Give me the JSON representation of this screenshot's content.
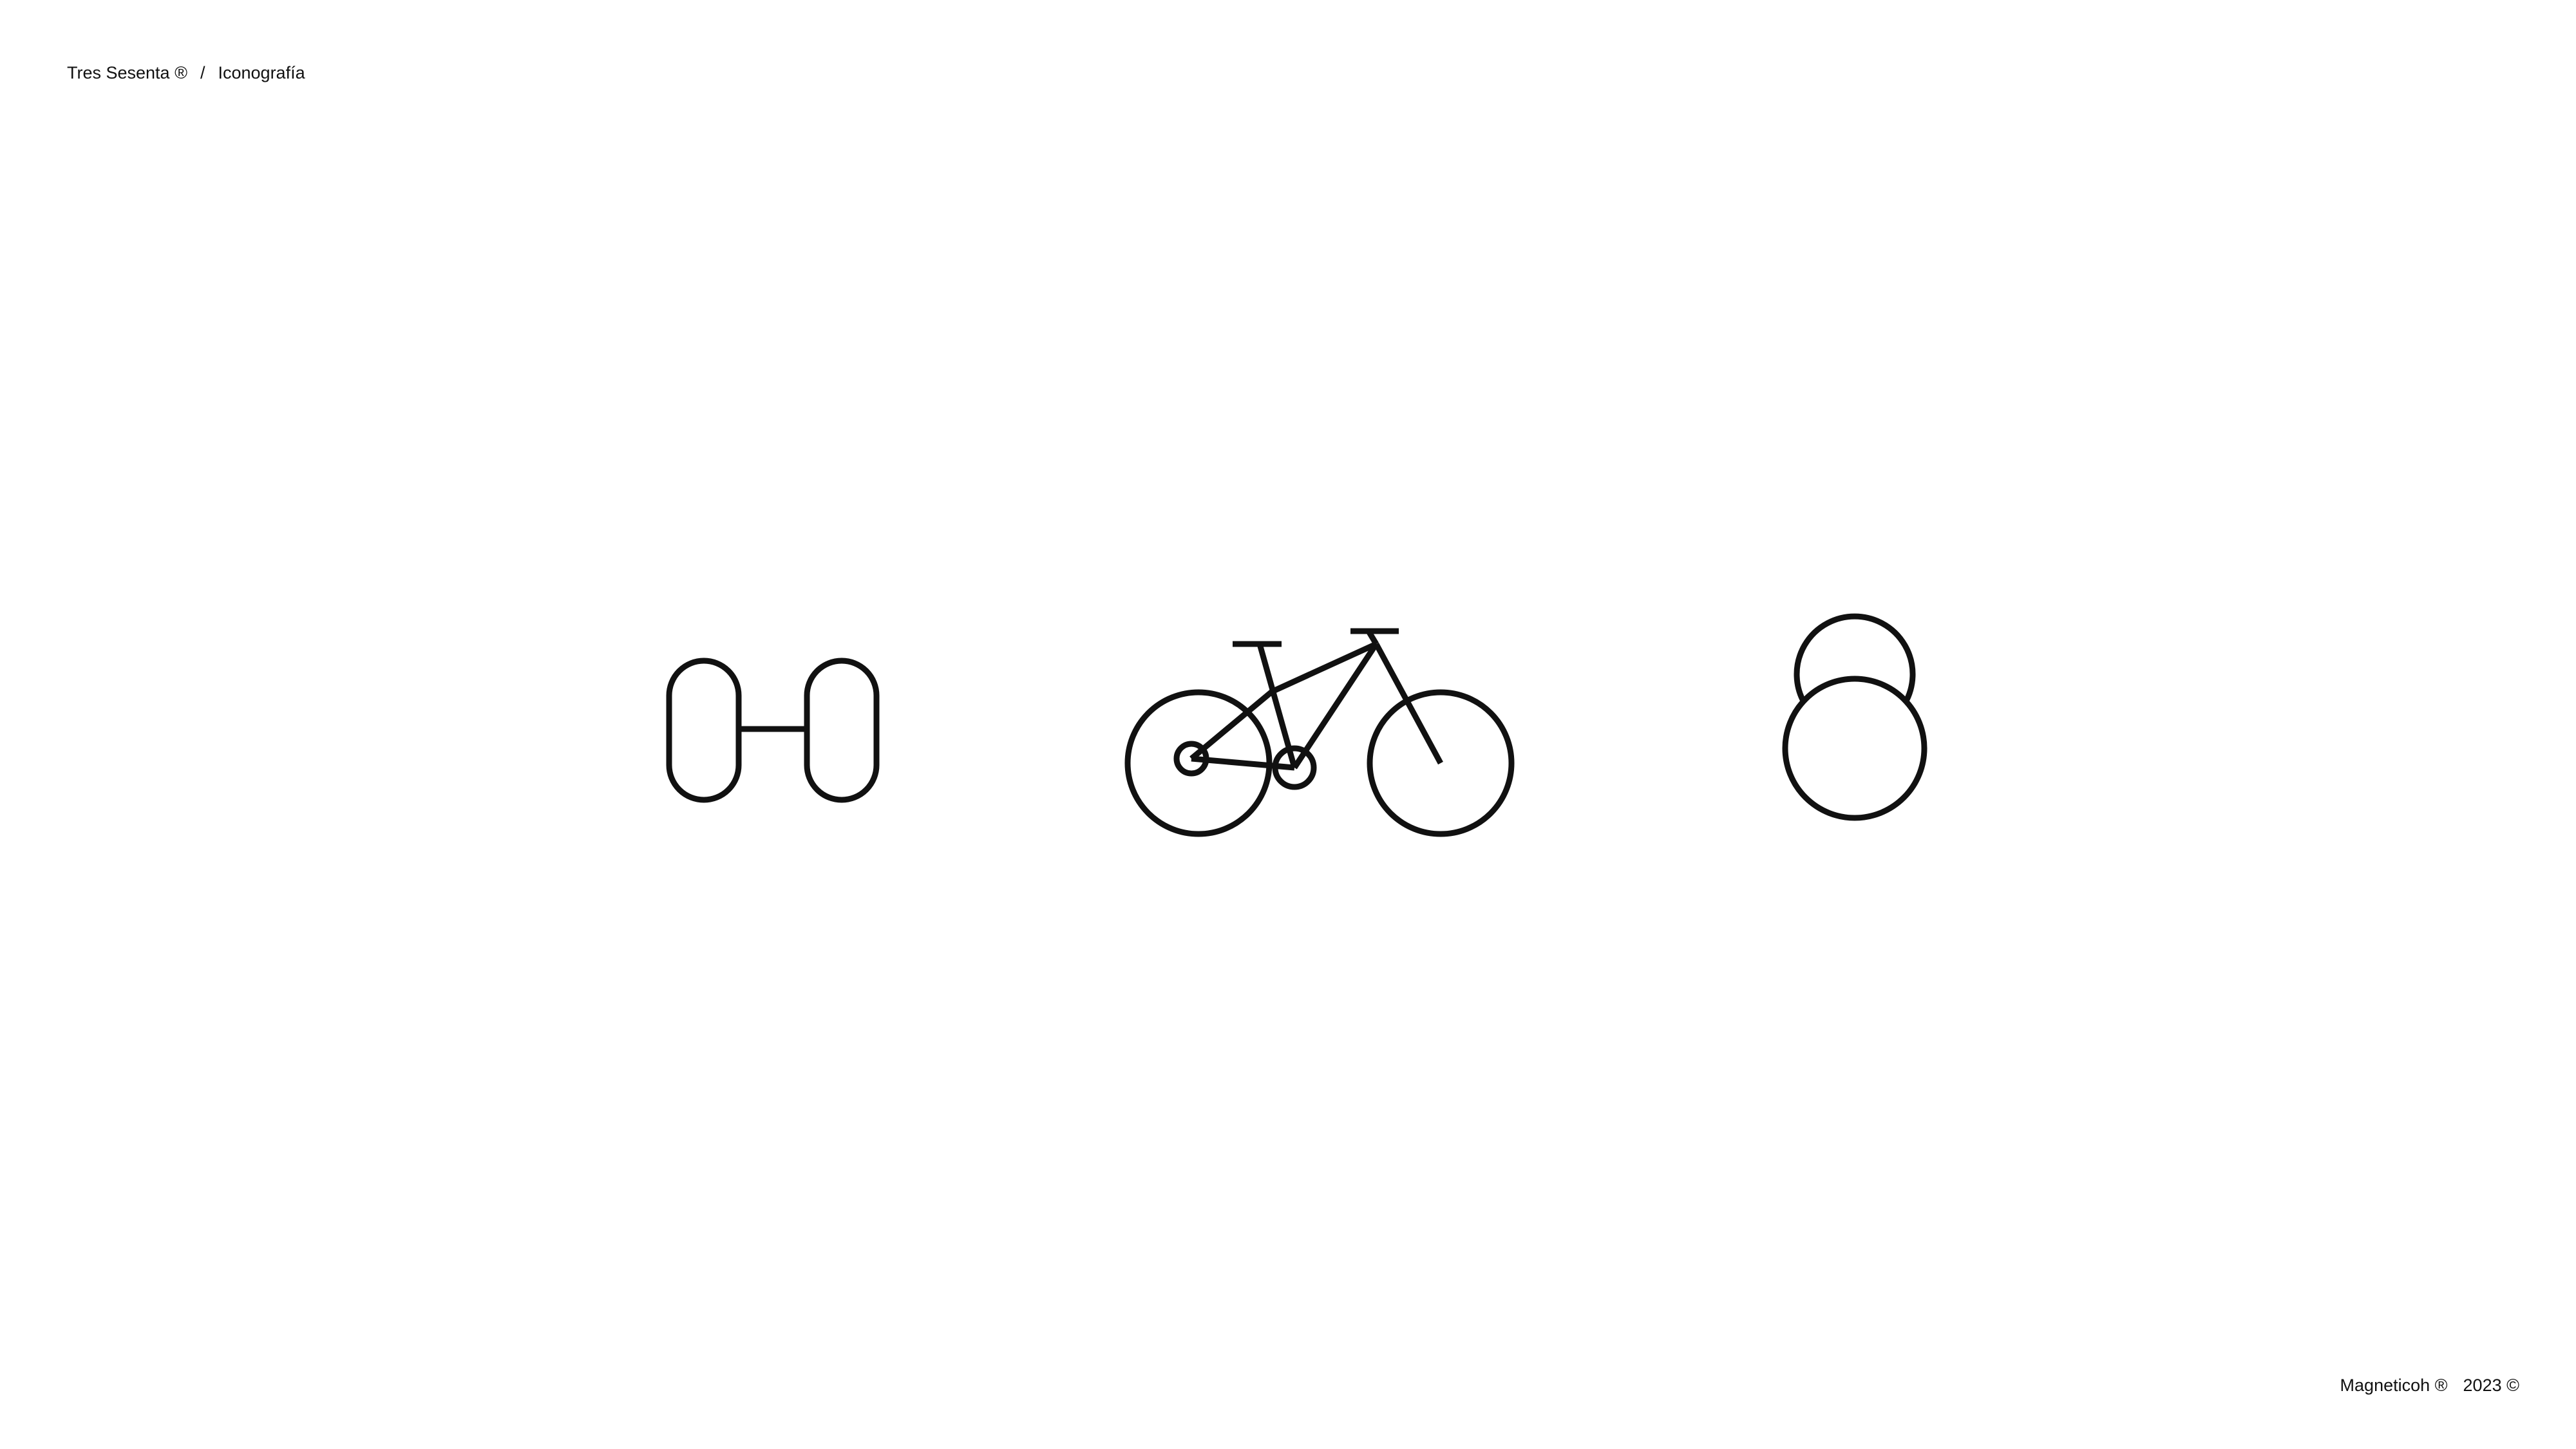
{
  "header": {
    "brand": "Tres Sesenta ®",
    "separator": "/",
    "section": "Iconografía"
  },
  "footer": {
    "brand": "Magneticoh ®",
    "year": "2023 ©"
  },
  "icons": [
    {
      "name": "dumbbell-icon"
    },
    {
      "name": "bicycle-icon"
    },
    {
      "name": "kettlebell-icon"
    }
  ],
  "colors": {
    "background": "#ffffff",
    "foreground": "#111111"
  }
}
